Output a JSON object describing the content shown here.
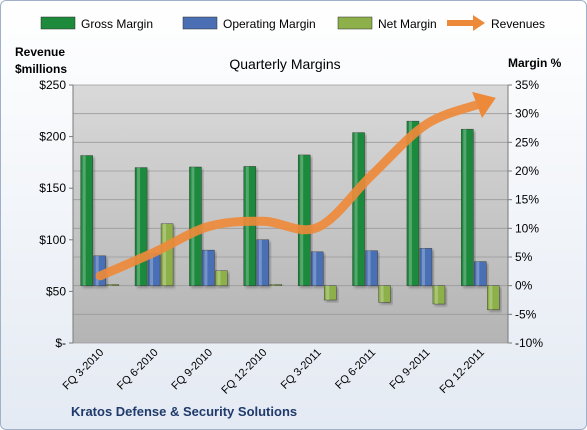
{
  "chart_data": {
    "type": "bar",
    "title": "Quarterly Margins",
    "company": "Kratos Defense & Security Solutions",
    "left_axis": {
      "label_line1": "Revenue",
      "label_line2": "$millions",
      "range": [
        0,
        250
      ],
      "ticks": [
        0,
        50,
        100,
        150,
        200,
        250
      ],
      "tick_labels": [
        "$-",
        "$50",
        "$100",
        "$150",
        "$200",
        "$250"
      ]
    },
    "right_axis": {
      "label": "Margin %",
      "range": [
        -10,
        35
      ],
      "ticks": [
        -10,
        -5,
        0,
        5,
        10,
        15,
        20,
        25,
        30,
        35
      ],
      "tick_labels": [
        "-10%",
        "-5%",
        "0%",
        "5%",
        "10%",
        "15%",
        "20%",
        "25%",
        "30%",
        "35%"
      ]
    },
    "categories": [
      "FQ 3-2010",
      "FQ 6-2010",
      "FQ 9-2010",
      "FQ 12-2010",
      "FQ 3-2011",
      "FQ 6-2011",
      "FQ 9-2011",
      "FQ 12-2011"
    ],
    "series": [
      {
        "name": "Gross Margin",
        "axis": "right",
        "kind": "bar",
        "color": "#1e8a3c",
        "values": [
          22.7,
          20.6,
          20.7,
          20.8,
          22.8,
          26.7,
          28.7,
          27.3
        ]
      },
      {
        "name": "Operating Margin",
        "axis": "right",
        "kind": "bar",
        "color": "#4a6fb5",
        "values": [
          5.2,
          5.6,
          6.2,
          8.0,
          5.9,
          6.1,
          6.5,
          4.2
        ]
      },
      {
        "name": "Net Margin",
        "axis": "right",
        "kind": "bar",
        "color": "#8db04a",
        "values": [
          0.2,
          10.8,
          2.6,
          0.2,
          -2.5,
          -2.9,
          -3.2,
          -4.2
        ]
      },
      {
        "name": "Revenues",
        "axis": "left",
        "kind": "line",
        "color": "#ed8a3a",
        "values": [
          65,
          88,
          113,
          118,
          112,
          163,
          212,
          232
        ]
      }
    ],
    "legend_position": "top",
    "grid": true
  }
}
